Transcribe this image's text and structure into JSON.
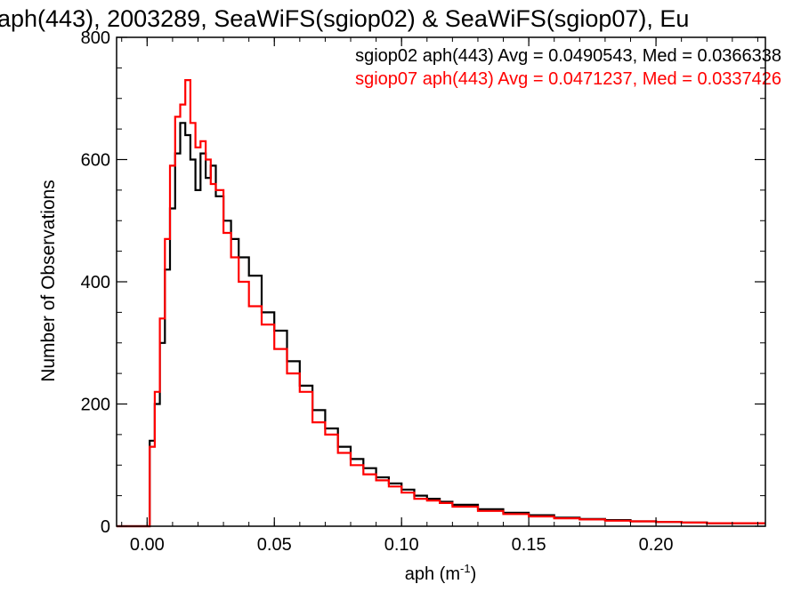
{
  "chart_data": {
    "type": "line",
    "style": "histogram-step",
    "title": "aph(443), 2003289, SeaWiFS(sgiop02) & SeaWiFS(sgiop07), Eu",
    "xlabel": "aph (m",
    "xlabel_sup": "-1",
    "xlabel_close": ")",
    "ylabel": "Number of Observations",
    "xlim": [
      -0.012,
      0.243
    ],
    "ylim": [
      0,
      800
    ],
    "xticks": [
      0.0,
      0.05,
      0.1,
      0.15,
      0.2
    ],
    "xtick_labels": [
      "0.00",
      "0.05",
      "0.10",
      "0.15",
      "0.20"
    ],
    "yticks": [
      0,
      200,
      400,
      600,
      800
    ],
    "ytick_labels": [
      "0",
      "200",
      "400",
      "600",
      "800"
    ],
    "grid": false,
    "legend_position": "top-right",
    "series": [
      {
        "name": "sgiop02",
        "color": "#000000",
        "legend": "sgiop02 aph(443) Avg = 0.0490543, Med = 0.0366338",
        "x": [
          -0.012,
          -0.001,
          0.001,
          0.003,
          0.005,
          0.007,
          0.009,
          0.011,
          0.013,
          0.015,
          0.017,
          0.019,
          0.021,
          0.023,
          0.025,
          0.027,
          0.03,
          0.033,
          0.036,
          0.04,
          0.045,
          0.05,
          0.055,
          0.06,
          0.065,
          0.07,
          0.075,
          0.08,
          0.085,
          0.09,
          0.095,
          0.1,
          0.105,
          0.11,
          0.115,
          0.12,
          0.13,
          0.14,
          0.15,
          0.16,
          0.17,
          0.18,
          0.19,
          0.2,
          0.21,
          0.22,
          0.23,
          0.243
        ],
        "y": [
          0,
          0,
          140,
          200,
          300,
          420,
          520,
          610,
          660,
          640,
          600,
          550,
          610,
          570,
          590,
          540,
          500,
          470,
          440,
          410,
          350,
          320,
          270,
          230,
          190,
          160,
          130,
          110,
          95,
          80,
          70,
          60,
          50,
          45,
          40,
          35,
          28,
          22,
          18,
          14,
          12,
          10,
          8,
          7,
          6,
          5,
          5,
          5
        ]
      },
      {
        "name": "sgiop07",
        "color": "#ff0000",
        "legend": "sgiop07 aph(443) Avg = 0.0471237, Med = 0.0337426",
        "x": [
          -0.012,
          -0.001,
          0.001,
          0.003,
          0.005,
          0.007,
          0.009,
          0.011,
          0.013,
          0.015,
          0.017,
          0.019,
          0.021,
          0.023,
          0.025,
          0.027,
          0.03,
          0.033,
          0.036,
          0.04,
          0.045,
          0.05,
          0.055,
          0.06,
          0.065,
          0.07,
          0.075,
          0.08,
          0.085,
          0.09,
          0.095,
          0.1,
          0.105,
          0.11,
          0.115,
          0.12,
          0.13,
          0.14,
          0.15,
          0.16,
          0.17,
          0.18,
          0.19,
          0.2,
          0.21,
          0.22,
          0.23,
          0.243
        ],
        "y": [
          0,
          0,
          130,
          220,
          340,
          470,
          590,
          670,
          690,
          730,
          660,
          620,
          630,
          600,
          560,
          550,
          480,
          440,
          400,
          360,
          330,
          290,
          250,
          220,
          170,
          150,
          120,
          100,
          85,
          75,
          65,
          55,
          45,
          42,
          38,
          32,
          25,
          20,
          16,
          13,
          11,
          9,
          8,
          7,
          6,
          5,
          5,
          5
        ]
      }
    ]
  }
}
